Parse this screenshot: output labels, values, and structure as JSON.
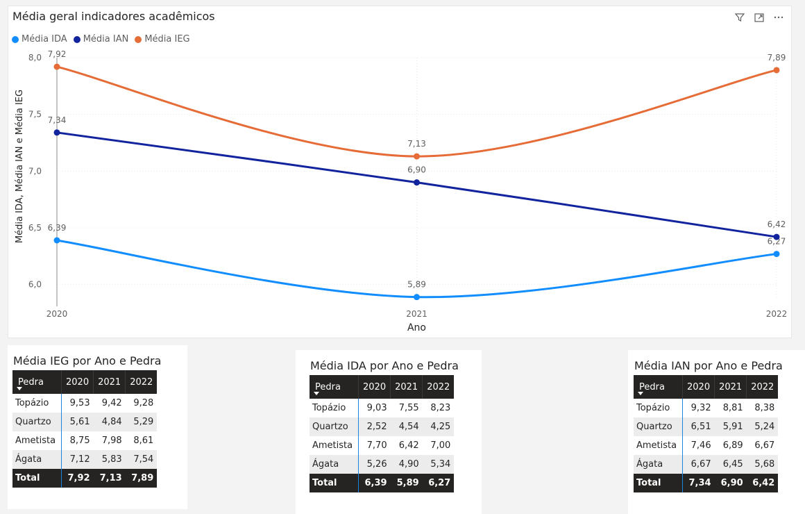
{
  "chart_data": {
    "type": "line",
    "title": "Média geral indicadores acadêmicos",
    "xlabel": "Ano",
    "ylabel": "Média IDA, Média IAN e Média IEG",
    "x": [
      "2020",
      "2021",
      "2022"
    ],
    "y_ticks": [
      "6,0",
      "6,5",
      "7,0",
      "7,5",
      "8,0"
    ],
    "ylim": [
      5.9,
      8.0
    ],
    "grid": true,
    "legend_position": "top-left",
    "series": [
      {
        "name": "Média IDA",
        "color": "#118dff",
        "values": [
          6.39,
          5.89,
          6.27
        ],
        "labels": [
          "6,39",
          "5,89",
          "6,27"
        ]
      },
      {
        "name": "Média IAN",
        "color": "#12239e",
        "values": [
          7.34,
          6.9,
          6.42
        ],
        "labels": [
          "7,34",
          "6,90",
          "6,42"
        ]
      },
      {
        "name": "Média IEG",
        "color": "#e66c37",
        "values": [
          7.92,
          7.13,
          7.89
        ],
        "labels": [
          "7,92",
          "7,13",
          "7,89"
        ]
      }
    ]
  },
  "toolbar": {
    "filter_icon": "filter-icon",
    "focus_icon": "focus-mode-icon",
    "more_icon": "more-options-icon"
  },
  "tables": [
    {
      "title": "Média IEG por Ano e Pedra",
      "corner": "Pedra",
      "columns": [
        "2020",
        "2021",
        "2022"
      ],
      "rows": [
        {
          "label": "Topázio",
          "values": [
            "9,53",
            "9,42",
            "9,28"
          ]
        },
        {
          "label": "Quartzo",
          "values": [
            "5,61",
            "4,84",
            "5,29"
          ]
        },
        {
          "label": "Ametista",
          "values": [
            "8,75",
            "7,98",
            "8,61"
          ]
        },
        {
          "label": "Ágata",
          "values": [
            "7,12",
            "5,83",
            "7,54"
          ]
        }
      ],
      "total": {
        "label": "Total",
        "values": [
          "7,92",
          "7,13",
          "7,89"
        ]
      }
    },
    {
      "title": "Média IDA por Ano e Pedra",
      "corner": "Pedra",
      "columns": [
        "2020",
        "2021",
        "2022"
      ],
      "rows": [
        {
          "label": "Topázio",
          "values": [
            "9,03",
            "7,55",
            "8,23"
          ]
        },
        {
          "label": "Quartzo",
          "values": [
            "2,52",
            "4,54",
            "4,25"
          ]
        },
        {
          "label": "Ametista",
          "values": [
            "7,70",
            "6,42",
            "7,00"
          ]
        },
        {
          "label": "Ágata",
          "values": [
            "5,26",
            "4,90",
            "5,34"
          ]
        }
      ],
      "total": {
        "label": "Total",
        "values": [
          "6,39",
          "5,89",
          "6,27"
        ]
      }
    },
    {
      "title": "Média IAN por Ano e Pedra",
      "corner": "Pedra",
      "columns": [
        "2020",
        "2021",
        "2022"
      ],
      "rows": [
        {
          "label": "Topázio",
          "values": [
            "9,32",
            "8,81",
            "8,38"
          ]
        },
        {
          "label": "Quartzo",
          "values": [
            "6,51",
            "5,91",
            "5,24"
          ]
        },
        {
          "label": "Ametista",
          "values": [
            "7,46",
            "6,89",
            "6,67"
          ]
        },
        {
          "label": "Ágata",
          "values": [
            "6,67",
            "6,45",
            "5,68"
          ]
        }
      ],
      "total": {
        "label": "Total",
        "values": [
          "7,34",
          "6,90",
          "6,42"
        ]
      }
    }
  ]
}
